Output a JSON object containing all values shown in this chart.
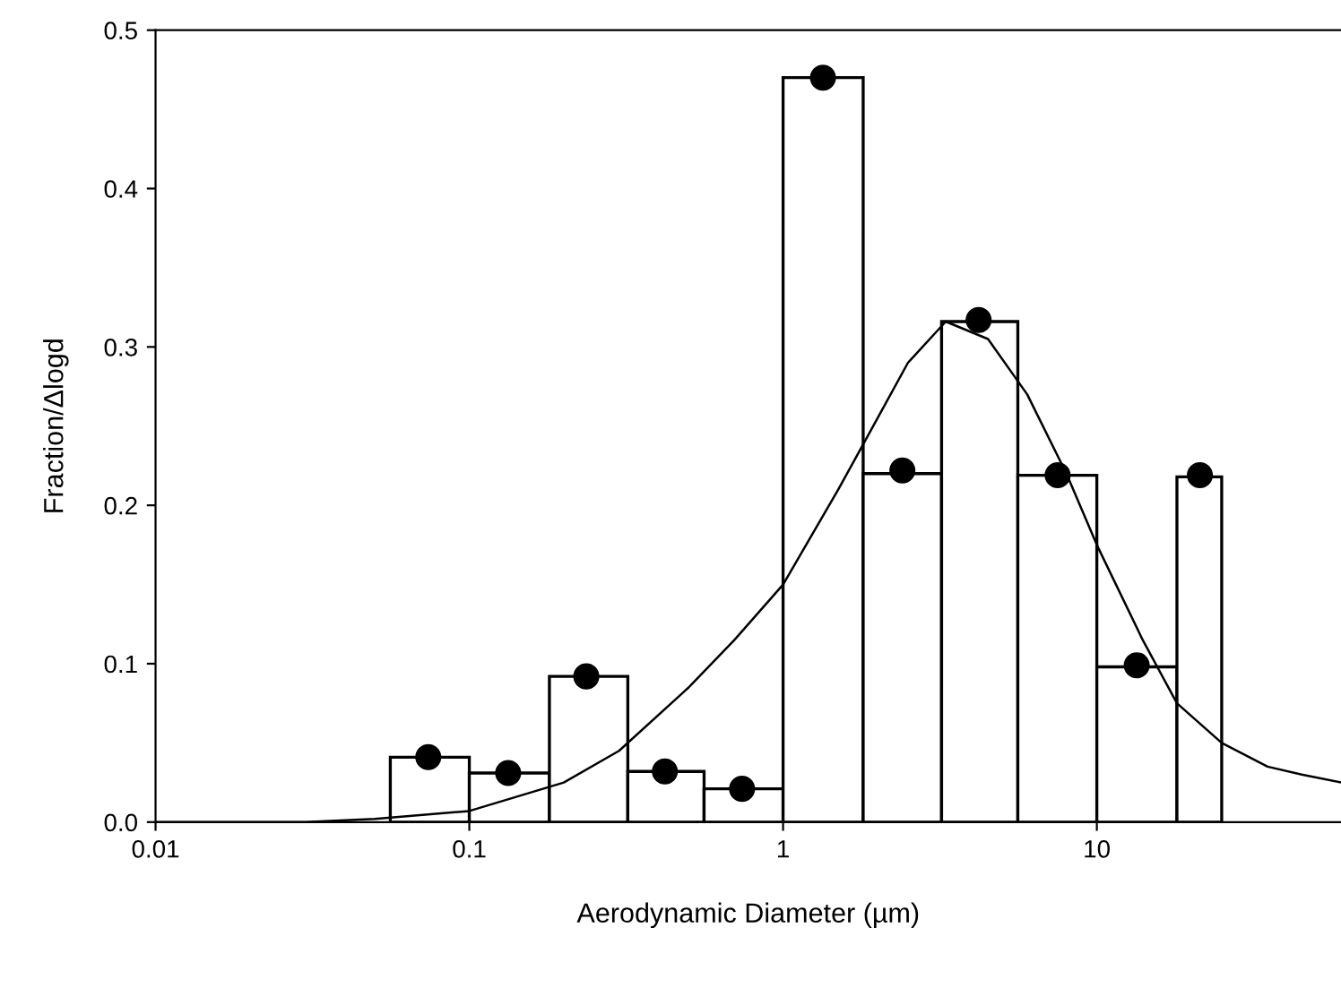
{
  "chart_data": {
    "type": "histogram",
    "xlabel": "Aerodynamic Diameter (µm)",
    "ylabel": "Fraction/Δlogd",
    "bins": [
      0.056,
      0.1,
      0.18,
      0.32,
      0.56,
      1.0,
      1.8,
      3.2,
      5.6,
      10,
      18,
      25
    ],
    "values": [
      0.041,
      0.031,
      0.092,
      0.032,
      0.021,
      0.47,
      0.22,
      0.316,
      0.219,
      0.098,
      0.218
    ],
    "color": "#ffffff",
    "series": [
      {
        "type": "scatter",
        "color": "#000000",
        "marker": "circle",
        "x": [
          0.074,
          0.133,
          0.236,
          0.42,
          0.74,
          1.34,
          2.4,
          4.2,
          7.5,
          13.4,
          21.3
        ],
        "values": [
          0.041,
          0.031,
          0.092,
          0.032,
          0.021,
          0.47,
          0.222,
          0.317,
          0.219,
          0.099,
          0.219
        ]
      },
      {
        "type": "line",
        "color": "#000000",
        "marker": "none",
        "x": [
          0.01,
          0.03,
          0.05,
          0.1,
          0.2,
          0.3,
          0.5,
          0.7,
          1,
          1.5,
          2,
          2.5,
          3.3,
          4.5,
          6,
          8,
          10,
          14,
          18,
          25,
          35,
          45,
          60
        ],
        "values": [
          0.0,
          0.0,
          0.002,
          0.007,
          0.025,
          0.045,
          0.085,
          0.115,
          0.15,
          0.21,
          0.255,
          0.29,
          0.316,
          0.305,
          0.27,
          0.22,
          0.175,
          0.115,
          0.075,
          0.05,
          0.035,
          0.03,
          0.025
        ]
      }
    ],
    "log": "x",
    "xlim": [
      0.01,
      60
    ],
    "ylim": [
      0,
      0.5
    ],
    "xticks": [
      0.01,
      0.1,
      1,
      10
    ],
    "yticks": [
      {
        "value": 0,
        "label": "0.0"
      },
      {
        "value": 0.1,
        "label": "0.1"
      },
      {
        "value": 0.2,
        "label": "0.2"
      },
      {
        "value": 0.3,
        "label": "0.3"
      },
      {
        "value": 0.4,
        "label": "0.4"
      },
      {
        "value": 0.5,
        "label": "0.5"
      }
    ],
    "grid": false,
    "legend": false
  }
}
